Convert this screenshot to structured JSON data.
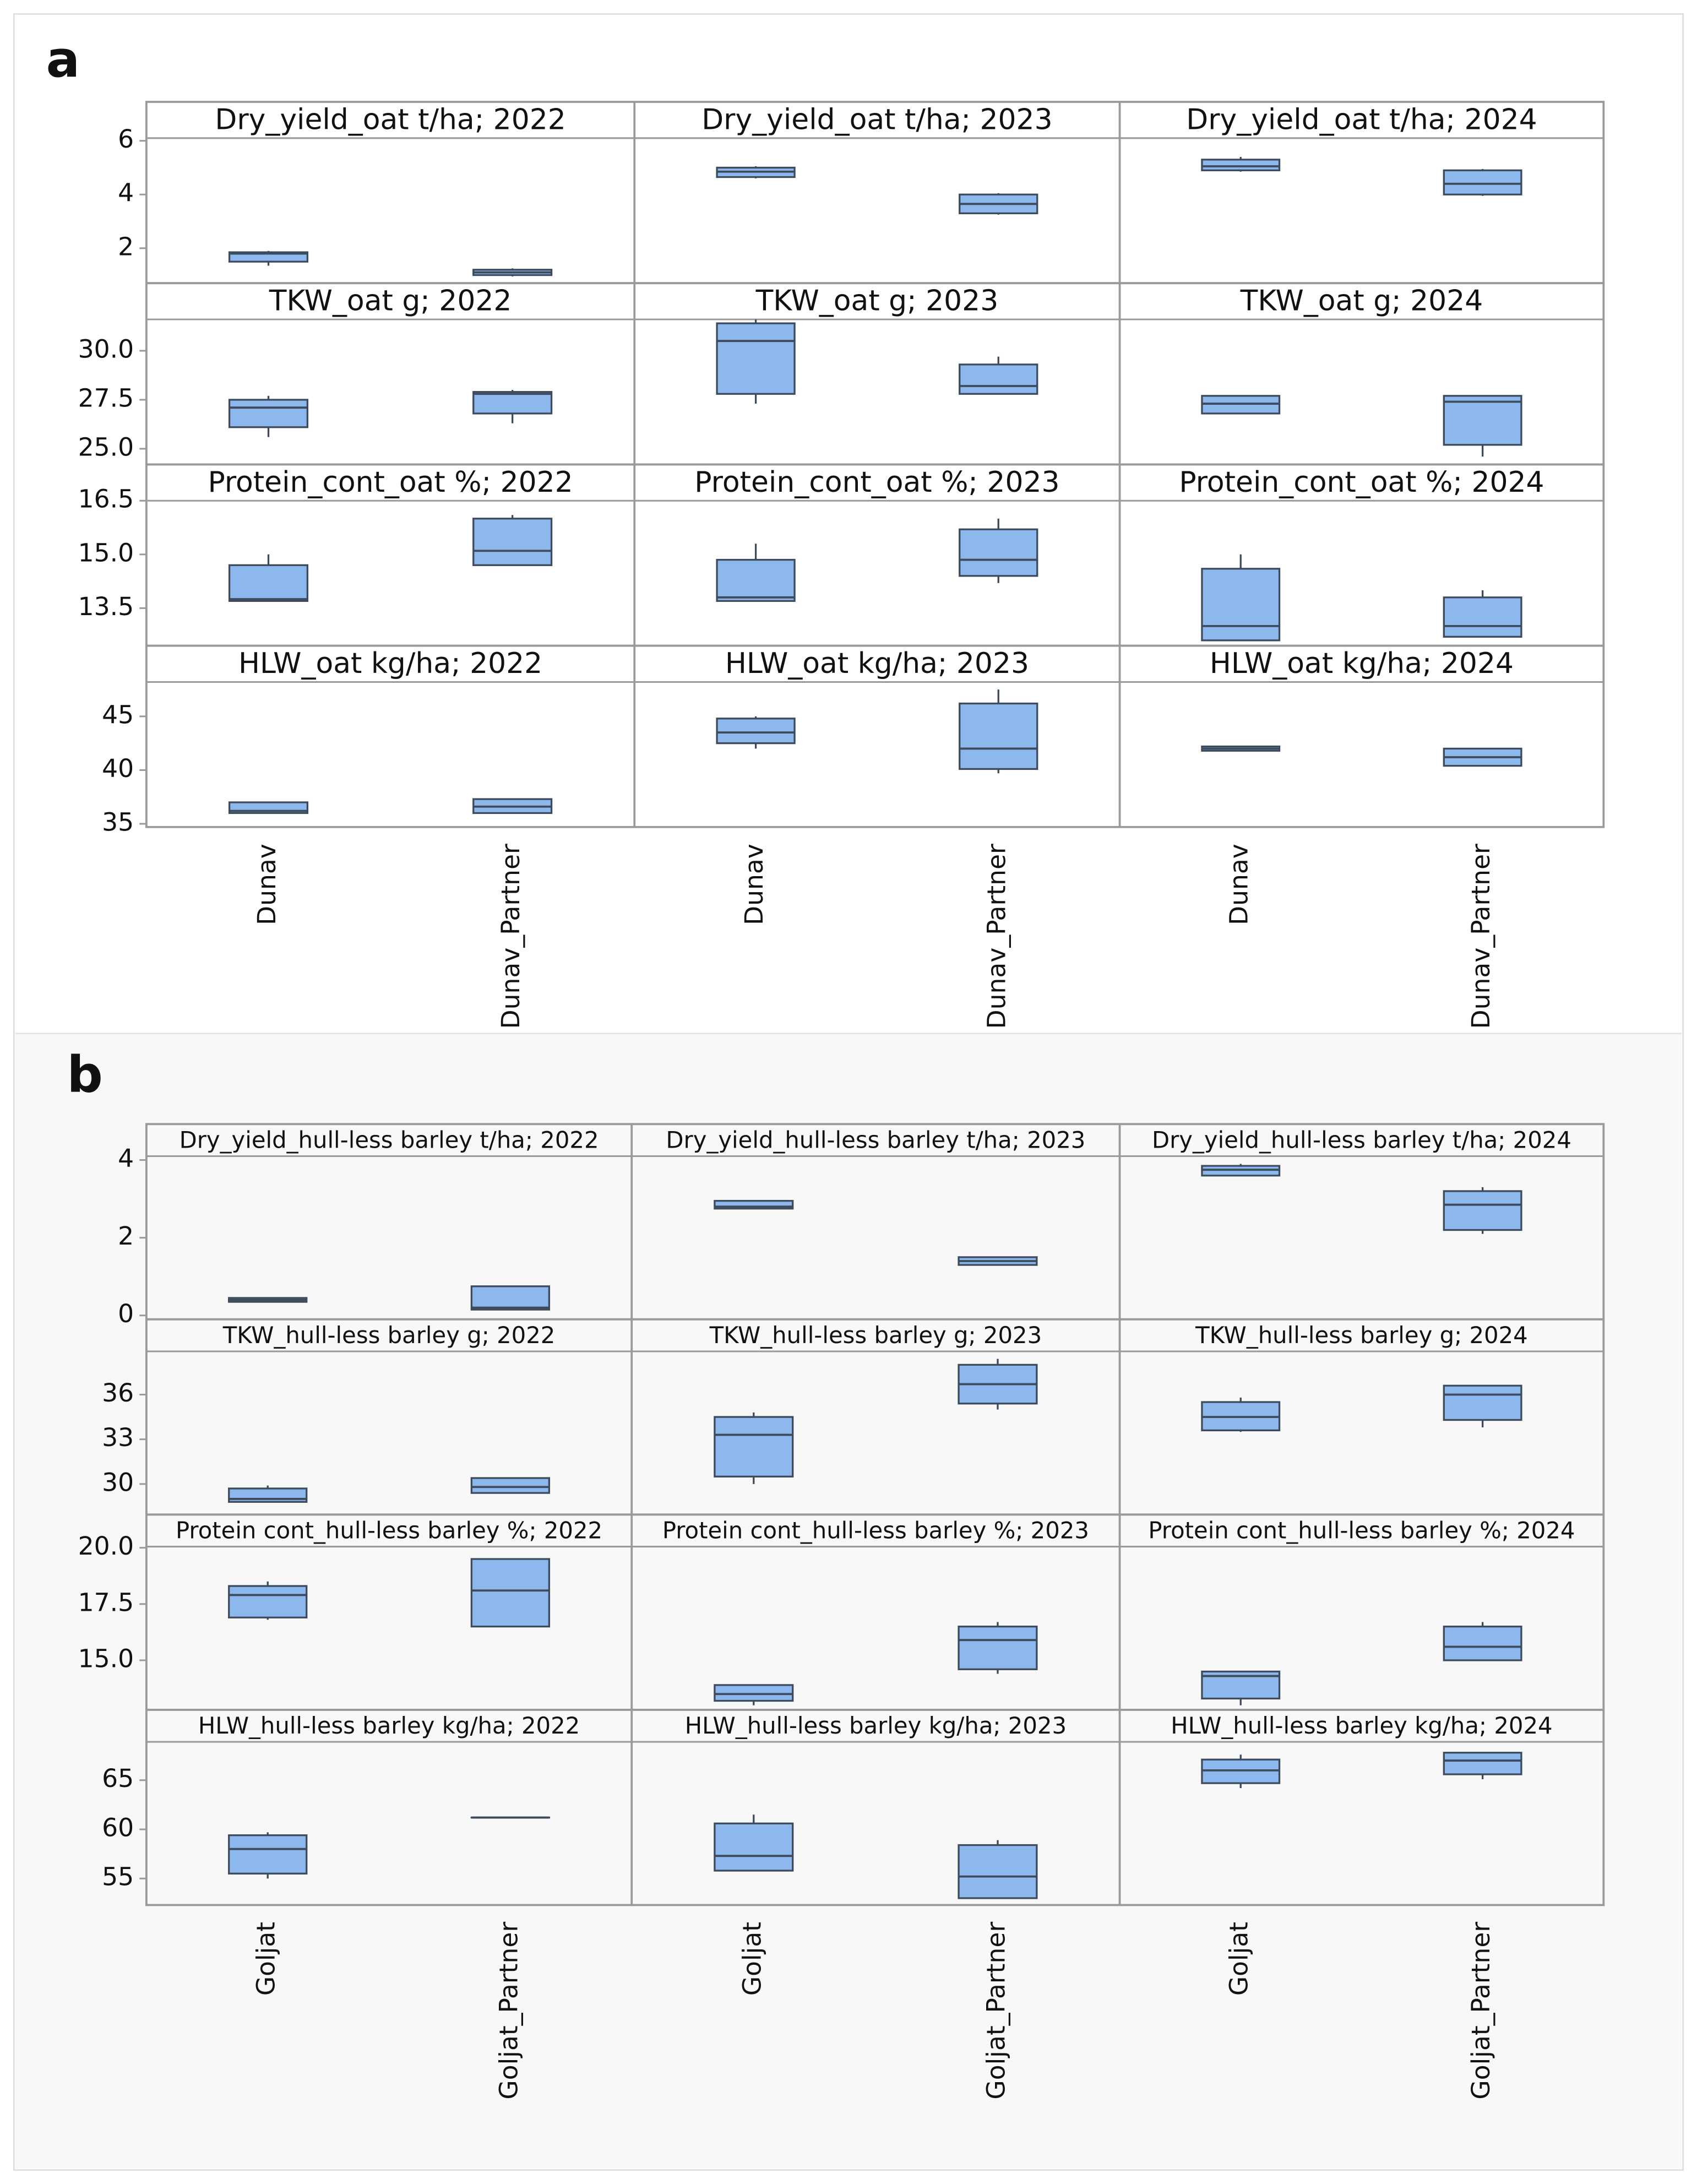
{
  "chart_data": [
    {
      "type": "box",
      "label": "a",
      "categories": [
        "Dunav",
        "Dunav_Partner"
      ],
      "color": "#8db8ee",
      "rows": [
        {
          "ylim": [
            0.7,
            6.1
          ],
          "yticks": [
            2,
            4,
            6
          ],
          "plots": [
            {
              "title": "Dry_yield_oat t/ha; 2022",
              "boxes": [
                {
                  "min": 1.35,
                  "q1": 1.5,
                  "median": 1.8,
                  "q3": 1.85,
                  "max": 1.9
                },
                {
                  "min": 0.95,
                  "q1": 1.0,
                  "median": 1.1,
                  "q3": 1.2,
                  "max": 1.25
                }
              ]
            },
            {
              "title": "Dry_yield_oat t/ha; 2023",
              "boxes": [
                {
                  "min": 4.6,
                  "q1": 4.65,
                  "median": 4.85,
                  "q3": 5.0,
                  "max": 5.05
                },
                {
                  "min": 3.25,
                  "q1": 3.3,
                  "median": 3.65,
                  "q3": 4.0,
                  "max": 4.05
                }
              ]
            },
            {
              "title": "Dry_yield_oat t/ha; 2024",
              "boxes": [
                {
                  "min": 4.85,
                  "q1": 4.9,
                  "median": 5.05,
                  "q3": 5.3,
                  "max": 5.4
                },
                {
                  "min": 3.95,
                  "q1": 4.0,
                  "median": 4.4,
                  "q3": 4.9,
                  "max": 4.95
                }
              ]
            }
          ]
        },
        {
          "ylim": [
            24.2,
            31.6
          ],
          "yticks": [
            {
              "value": 25,
              "label": "25.0"
            },
            27.5,
            {
              "value": 30,
              "label": "30.0"
            }
          ],
          "plots": [
            {
              "title": "TKW_oat g; 2022",
              "boxes": [
                {
                  "min": 25.6,
                  "q1": 26.1,
                  "median": 27.1,
                  "q3": 27.5,
                  "max": 27.7
                },
                {
                  "min": 26.3,
                  "q1": 26.8,
                  "median": 27.8,
                  "q3": 27.9,
                  "max": 28.0
                }
              ]
            },
            {
              "title": "TKW_oat g; 2023",
              "boxes": [
                {
                  "min": 27.3,
                  "q1": 27.8,
                  "median": 30.5,
                  "q3": 31.4,
                  "max": 31.6
                },
                {
                  "min": 27.8,
                  "q1": 27.8,
                  "median": 28.2,
                  "q3": 29.3,
                  "max": 29.7
                }
              ]
            },
            {
              "title": "TKW_oat g; 2024",
              "boxes": [
                {
                  "min": 26.8,
                  "q1": 26.8,
                  "median": 27.3,
                  "q3": 27.7,
                  "max": 27.7
                },
                {
                  "min": 24.6,
                  "q1": 25.2,
                  "median": 27.4,
                  "q3": 27.7,
                  "max": 27.7
                }
              ]
            }
          ]
        },
        {
          "ylim": [
            12.45,
            16.5
          ],
          "yticks": [
            13.5,
            {
              "value": 15,
              "label": "15.0"
            },
            16.5
          ],
          "plots": [
            {
              "title": "Protein_cont_oat %; 2022",
              "boxes": [
                {
                  "min": 13.7,
                  "q1": 13.7,
                  "median": 13.75,
                  "q3": 14.7,
                  "max": 15.0
                },
                {
                  "min": 14.7,
                  "q1": 14.7,
                  "median": 15.1,
                  "q3": 16.0,
                  "max": 16.1
                }
              ]
            },
            {
              "title": "Protein_cont_oat %; 2023",
              "boxes": [
                {
                  "min": 13.7,
                  "q1": 13.7,
                  "median": 13.8,
                  "q3": 14.85,
                  "max": 15.3
                },
                {
                  "min": 14.2,
                  "q1": 14.4,
                  "median": 14.85,
                  "q3": 15.7,
                  "max": 16.0
                }
              ]
            },
            {
              "title": "Protein_cont_oat %; 2024",
              "boxes": [
                {
                  "min": 12.6,
                  "q1": 12.6,
                  "median": 13.0,
                  "q3": 14.6,
                  "max": 15.0
                },
                {
                  "min": 12.7,
                  "q1": 12.7,
                  "median": 13.0,
                  "q3": 13.8,
                  "max": 14.0
                }
              ]
            }
          ]
        },
        {
          "ylim": [
            34.7,
            48.2
          ],
          "yticks": [
            35,
            40,
            45
          ],
          "plots": [
            {
              "title": "HLW_oat kg/ha; 2022",
              "boxes": [
                {
                  "min": 36.0,
                  "q1": 36.0,
                  "median": 36.2,
                  "q3": 37.0,
                  "max": 37.0
                },
                {
                  "min": 36.0,
                  "q1": 36.0,
                  "median": 36.6,
                  "q3": 37.3,
                  "max": 37.3
                }
              ]
            },
            {
              "title": "HLW_oat kg/ha; 2023",
              "boxes": [
                {
                  "min": 42.0,
                  "q1": 42.5,
                  "median": 43.5,
                  "q3": 44.8,
                  "max": 45.0
                },
                {
                  "min": 39.7,
                  "q1": 40.1,
                  "median": 42.0,
                  "q3": 46.2,
                  "max": 47.5
                }
              ]
            },
            {
              "title": "HLW_oat kg/ha; 2024",
              "boxes": [
                {
                  "min": 41.8,
                  "q1": 41.8,
                  "median": 42.0,
                  "q3": 42.2,
                  "max": 42.2
                },
                {
                  "min": 40.4,
                  "q1": 40.4,
                  "median": 41.2,
                  "q3": 42.0,
                  "max": 42.0
                }
              ]
            }
          ]
        }
      ]
    },
    {
      "type": "box",
      "label": "b",
      "categories": [
        "Goljat",
        "Goljat_Partner"
      ],
      "color": "#8db8ee",
      "rows": [
        {
          "ylim": [
            -0.1,
            4.1
          ],
          "yticks": [
            0,
            2,
            4
          ],
          "plots": [
            {
              "title": "Dry_yield_hull-less barley t/ha; 2022",
              "boxes": [
                {
                  "min": 0.35,
                  "q1": 0.35,
                  "median": 0.4,
                  "q3": 0.45,
                  "max": 0.45
                },
                {
                  "min": 0.15,
                  "q1": 0.15,
                  "median": 0.2,
                  "q3": 0.75,
                  "max": 0.75
                }
              ]
            },
            {
              "title": "Dry_yield_hull-less barley t/ha; 2023",
              "boxes": [
                {
                  "min": 2.75,
                  "q1": 2.75,
                  "median": 2.8,
                  "q3": 2.95,
                  "max": 2.95
                },
                {
                  "min": 1.3,
                  "q1": 1.3,
                  "median": 1.4,
                  "q3": 1.5,
                  "max": 1.5
                }
              ]
            },
            {
              "title": "Dry_yield_hull-less barley t/ha; 2024",
              "boxes": [
                {
                  "min": 3.6,
                  "q1": 3.6,
                  "median": 3.75,
                  "q3": 3.85,
                  "max": 3.9
                },
                {
                  "min": 2.1,
                  "q1": 2.2,
                  "median": 2.85,
                  "q3": 3.2,
                  "max": 3.3
                }
              ]
            }
          ]
        },
        {
          "ylim": [
            27.95,
            38.9
          ],
          "yticks": [
            30,
            33,
            36
          ],
          "plots": [
            {
              "title": "TKW_hull-less barley g; 2022",
              "boxes": [
                {
                  "min": 28.8,
                  "q1": 28.8,
                  "median": 29.0,
                  "q3": 29.7,
                  "max": 29.9
                },
                {
                  "min": 29.4,
                  "q1": 29.4,
                  "median": 29.8,
                  "q3": 30.4,
                  "max": 30.4
                }
              ]
            },
            {
              "title": "TKW_hull-less barley g; 2023",
              "boxes": [
                {
                  "min": 30.0,
                  "q1": 30.5,
                  "median": 33.3,
                  "q3": 34.5,
                  "max": 34.8
                },
                {
                  "min": 35.0,
                  "q1": 35.4,
                  "median": 36.7,
                  "q3": 38.0,
                  "max": 38.4
                }
              ]
            },
            {
              "title": "TKW_hull-less barley g; 2024",
              "boxes": [
                {
                  "min": 33.5,
                  "q1": 33.6,
                  "median": 34.5,
                  "q3": 35.5,
                  "max": 35.8
                },
                {
                  "min": 33.8,
                  "q1": 34.3,
                  "median": 36.0,
                  "q3": 36.6,
                  "max": 36.6
                }
              ]
            }
          ]
        },
        {
          "ylim": [
            12.8,
            20.05
          ],
          "yticks": [
            {
              "value": 15,
              "label": "15.0"
            },
            17.5,
            {
              "value": 20,
              "label": "20.0"
            }
          ],
          "plots": [
            {
              "title": "Protein cont_hull-less barley %; 2022",
              "boxes": [
                {
                  "min": 16.8,
                  "q1": 16.9,
                  "median": 17.9,
                  "q3": 18.3,
                  "max": 18.5
                },
                {
                  "min": 16.5,
                  "q1": 16.5,
                  "median": 18.1,
                  "q3": 19.5,
                  "max": 19.5
                }
              ]
            },
            {
              "title": "Protein cont_hull-less barley %; 2023",
              "boxes": [
                {
                  "min": 13.0,
                  "q1": 13.2,
                  "median": 13.5,
                  "q3": 13.9,
                  "max": 13.9
                },
                {
                  "min": 14.4,
                  "q1": 14.6,
                  "median": 15.9,
                  "q3": 16.5,
                  "max": 16.7
                }
              ]
            },
            {
              "title": "Protein cont_hull-less barley %; 2024",
              "boxes": [
                {
                  "min": 13.0,
                  "q1": 13.3,
                  "median": 14.3,
                  "q3": 14.5,
                  "max": 14.5
                },
                {
                  "min": 15.0,
                  "q1": 15.0,
                  "median": 15.6,
                  "q3": 16.5,
                  "max": 16.7
                }
              ]
            }
          ]
        },
        {
          "ylim": [
            52.3,
            68.9
          ],
          "yticks": [
            55,
            60,
            65
          ],
          "plots": [
            {
              "title": "HLW_hull-less barley kg/ha; 2022",
              "boxes": [
                {
                  "min": 55.0,
                  "q1": 55.5,
                  "median": 58.0,
                  "q3": 59.4,
                  "max": 59.7
                },
                {
                  "min": 61.2,
                  "q1": 61.2,
                  "median": 61.2,
                  "q3": 61.2,
                  "max": 61.2
                }
              ]
            },
            {
              "title": "HLW_hull-less barley kg/ha; 2023",
              "boxes": [
                {
                  "min": 55.8,
                  "q1": 55.8,
                  "median": 57.3,
                  "q3": 60.6,
                  "max": 61.5
                },
                {
                  "min": 53.0,
                  "q1": 53.0,
                  "median": 55.2,
                  "q3": 58.4,
                  "max": 58.9
                }
              ]
            },
            {
              "title": "HLW_hull-less barley kg/ha; 2024",
              "boxes": [
                {
                  "min": 64.2,
                  "q1": 64.7,
                  "median": 66.0,
                  "q3": 67.1,
                  "max": 67.6
                },
                {
                  "min": 65.1,
                  "q1": 65.6,
                  "median": 67.0,
                  "q3": 67.8,
                  "max": 67.8
                }
              ]
            }
          ]
        }
      ]
    }
  ]
}
